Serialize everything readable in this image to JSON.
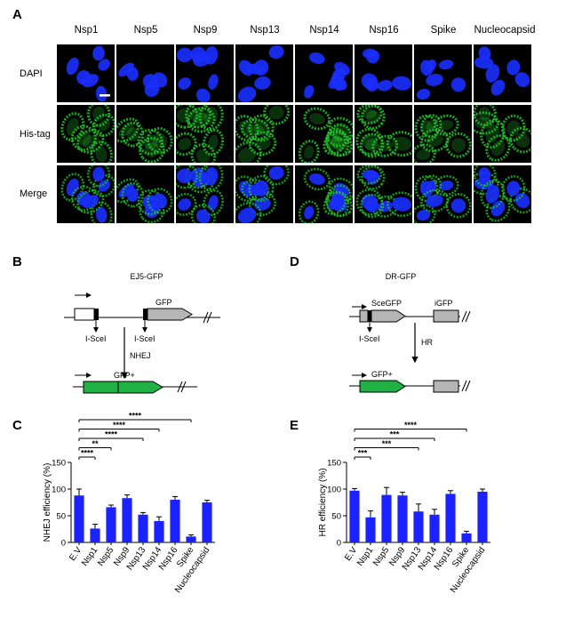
{
  "panels": {
    "a": "A",
    "b": "B",
    "c": "C",
    "d": "D",
    "e": "E"
  },
  "microscopy": {
    "columns": [
      "Nsp1",
      "Nsp5",
      "Nsp9",
      "Nsp13",
      "Nsp14",
      "Nsp16",
      "Spike",
      "Nucleocapsid"
    ],
    "rows": [
      "DAPI",
      "His-tag",
      "Merge"
    ],
    "colors": {
      "dapi": "#1a2fff",
      "histag": "#22c22a",
      "background": "#000000"
    }
  },
  "diagram_b": {
    "title": "EJ5-GFP",
    "gfp": "GFP",
    "isce1_left": "I-SceI",
    "isce1_right": "I-SceI",
    "process": "NHEJ",
    "product": "GFP+"
  },
  "diagram_d": {
    "title": "DR-GFP",
    "scegfp": "SceGFP",
    "igfp": "iGFP",
    "isce1": "I-SceI",
    "process": "HR",
    "product": "GFP+"
  },
  "chart_data": [
    {
      "type": "bar",
      "ylabel": "NHEJ efficiency (%)",
      "categories": [
        "E.V",
        "Nsp1",
        "Nsp5",
        "Nsp9",
        "Nsp13",
        "Nsp14",
        "Nsp16",
        "Spike",
        "Nucleocapsid"
      ],
      "values": [
        88,
        26,
        66,
        83,
        52,
        40,
        80,
        11,
        75
      ],
      "errors": [
        12,
        8,
        4,
        6,
        4,
        8,
        6,
        3,
        4
      ],
      "ylim": [
        0,
        150
      ],
      "yticks": [
        "0",
        "50",
        "100",
        "150"
      ],
      "bar_color": "#1a22ff",
      "significance": [
        {
          "to": "Nsp1",
          "label": "****"
        },
        {
          "to": "Nsp5",
          "label": "**"
        },
        {
          "to": "Nsp13",
          "label": "****"
        },
        {
          "to": "Nsp14",
          "label": "****"
        },
        {
          "to": "Spike",
          "label": "****"
        }
      ]
    },
    {
      "type": "bar",
      "ylabel": "HR efficiency (%)",
      "categories": [
        "E.V",
        "Nsp1",
        "Nsp5",
        "Nsp9",
        "Nsp13",
        "Nsp14",
        "Nsp16",
        "Spike",
        "Nucleocapsid"
      ],
      "values": [
        97,
        47,
        89,
        88,
        58,
        52,
        91,
        17,
        95
      ],
      "errors": [
        4,
        12,
        14,
        6,
        14,
        10,
        6,
        4,
        5
      ],
      "ylim": [
        0,
        150
      ],
      "yticks": [
        "0",
        "50",
        "100",
        "150"
      ],
      "bar_color": "#1a22ff",
      "significance": [
        {
          "to": "Nsp1",
          "label": "***"
        },
        {
          "to": "Nsp13",
          "label": "***"
        },
        {
          "to": "Nsp14",
          "label": "***"
        },
        {
          "to": "Spike",
          "label": "****"
        }
      ]
    }
  ]
}
